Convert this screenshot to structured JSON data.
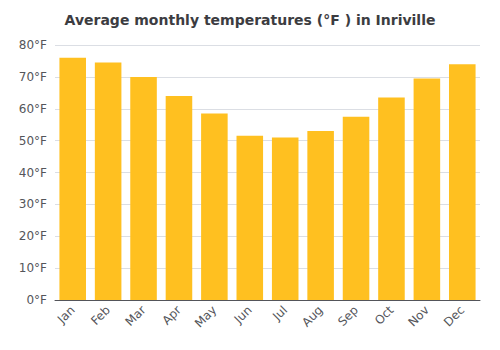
{
  "chart_data": {
    "type": "bar",
    "title": "Average monthly temperatures (°F ) in Inriville",
    "categories": [
      "Jan",
      "Feb",
      "Mar",
      "Apr",
      "May",
      "Jun",
      "Jul",
      "Aug",
      "Sep",
      "Oct",
      "Nov",
      "Dec"
    ],
    "values": [
      76.0,
      74.5,
      70.0,
      64.0,
      58.5,
      51.5,
      51.0,
      53.0,
      57.5,
      63.5,
      69.5,
      74.0
    ],
    "color": "#FFC020",
    "ylim": [
      0,
      80
    ],
    "yticks": [
      {
        "value": 0,
        "label": "0°F"
      },
      {
        "value": 10,
        "label": "10°F"
      },
      {
        "value": 20,
        "label": "20°F"
      },
      {
        "value": 30,
        "label": "30°F"
      },
      {
        "value": 40,
        "label": "40°F"
      },
      {
        "value": 50,
        "label": "50°F"
      },
      {
        "value": 60,
        "label": "60°F"
      },
      {
        "value": 70,
        "label": "70°F"
      },
      {
        "value": 80,
        "label": "80°F"
      }
    ],
    "grid": true
  }
}
